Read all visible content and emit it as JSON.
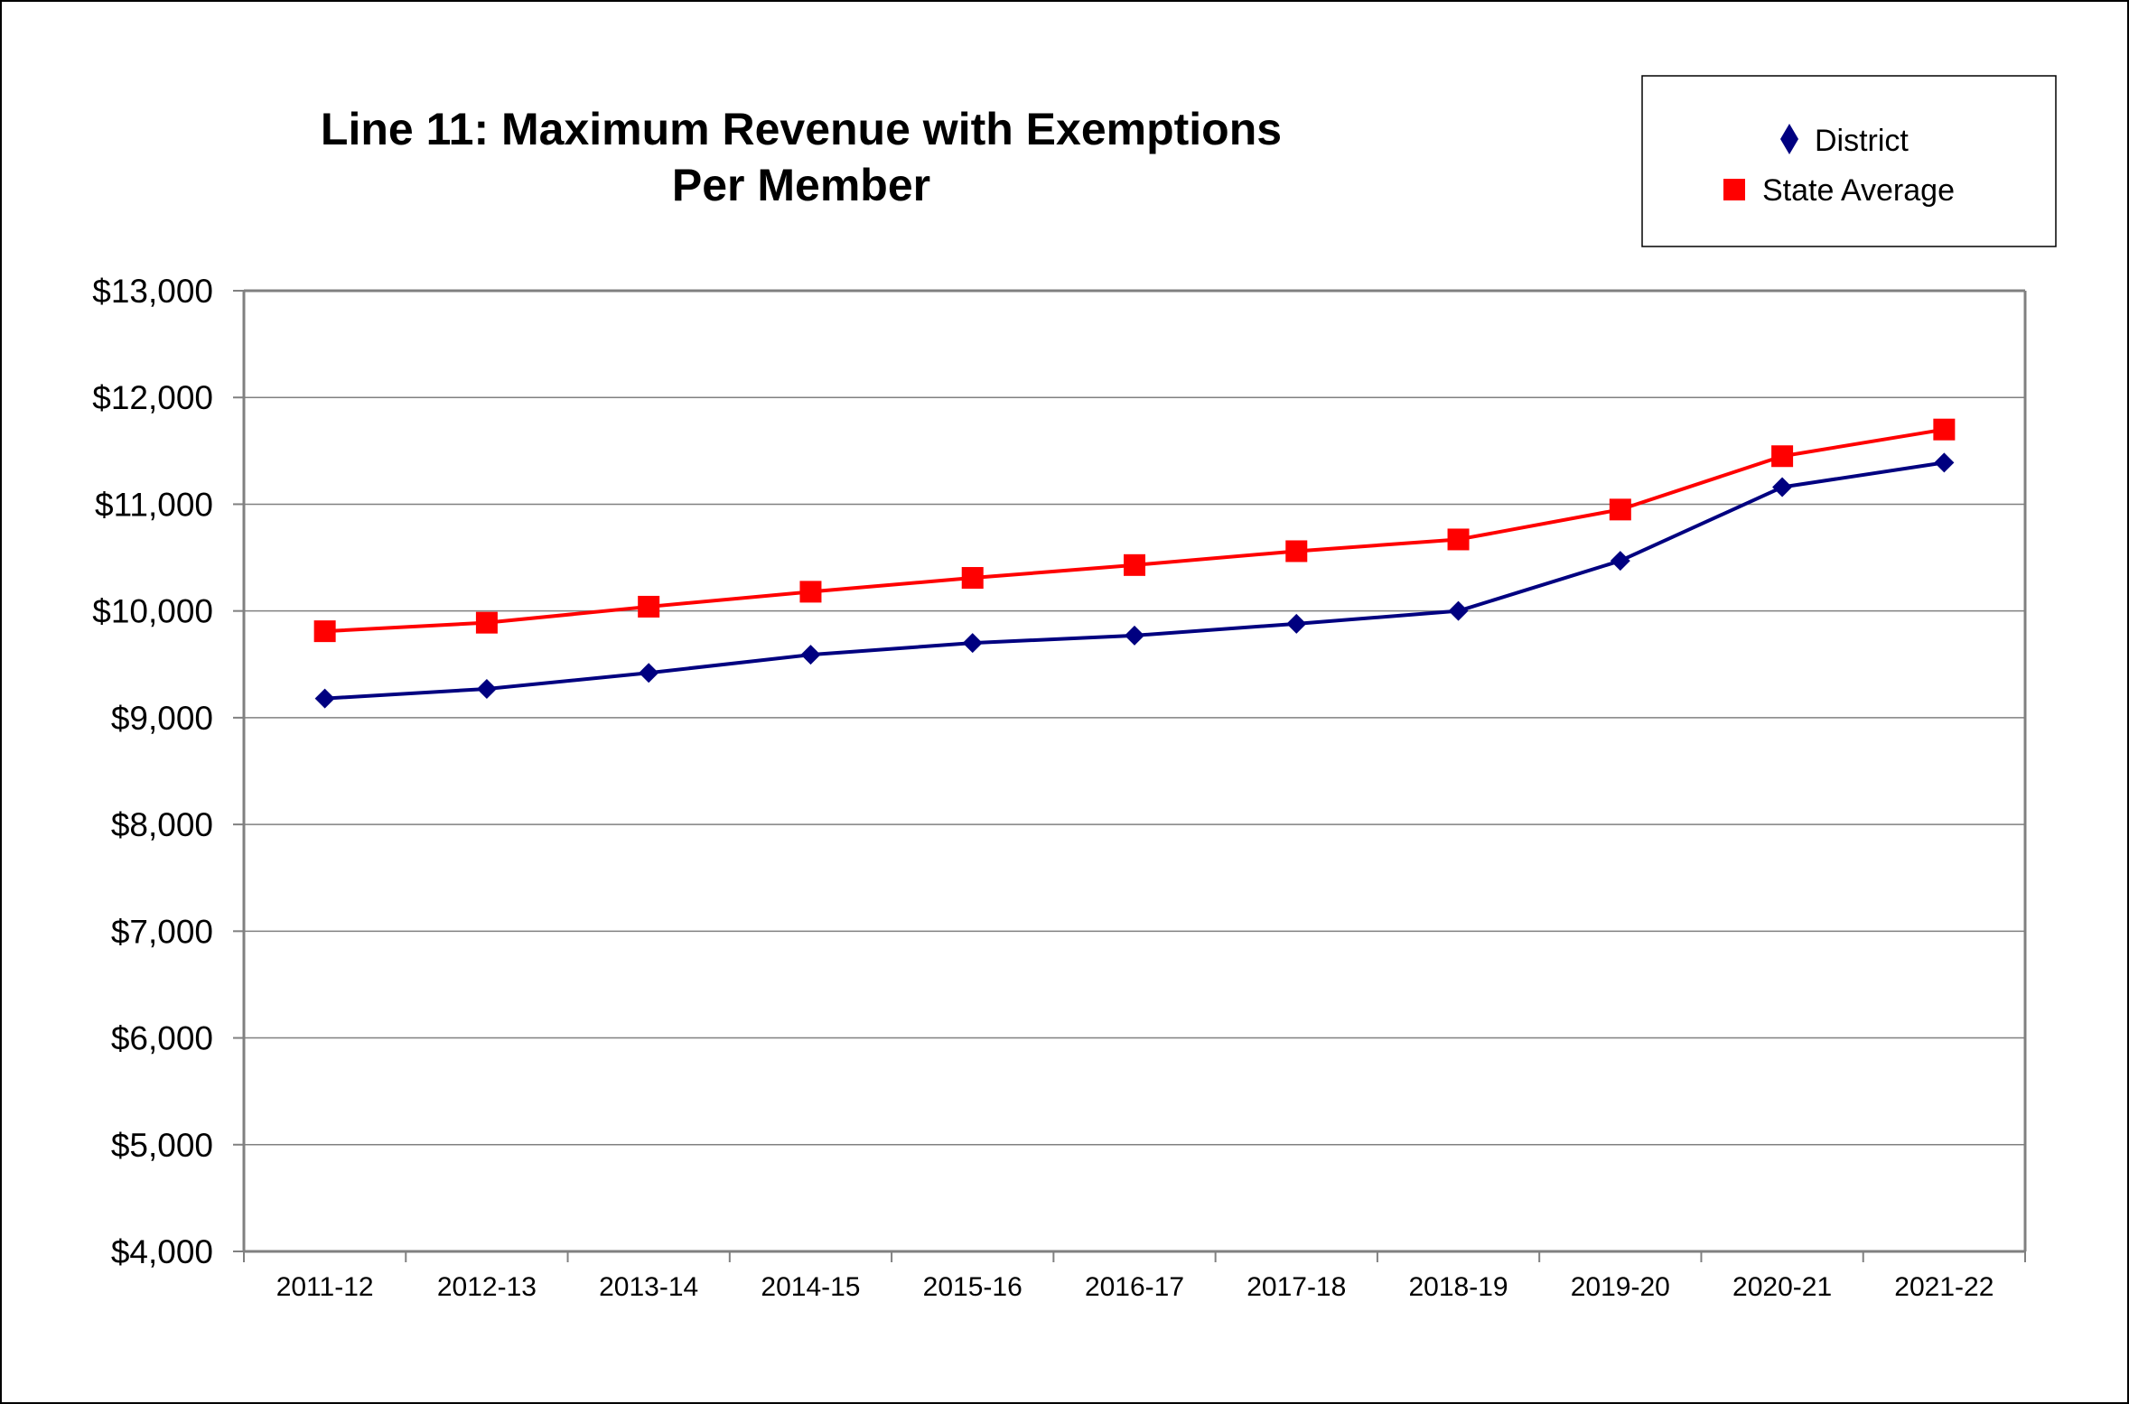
{
  "chart_data": {
    "type": "line",
    "title_lines": [
      "Line 11: Maximum Revenue with Exemptions",
      "Per Member"
    ],
    "xlabel": "",
    "ylabel": "",
    "categories": [
      "2011-12",
      "2012-13",
      "2013-14",
      "2014-15",
      "2015-16",
      "2016-17",
      "2017-18",
      "2018-19",
      "2019-20",
      "2020-21",
      "2021-22"
    ],
    "ylim": [
      4000,
      13000
    ],
    "yticks": [
      4000,
      5000,
      6000,
      7000,
      8000,
      9000,
      10000,
      11000,
      12000,
      13000
    ],
    "ytick_labels": [
      "$4,000",
      "$5,000",
      "$6,000",
      "$7,000",
      "$8,000",
      "$9,000",
      "$10,000",
      "$11,000",
      "$12,000",
      "$13,000"
    ],
    "grid": true,
    "legend_position": "top-right",
    "series": [
      {
        "name": "District",
        "color": "#000080",
        "marker": "diamond",
        "values": [
          9180,
          9270,
          9420,
          9590,
          9700,
          9770,
          9880,
          10000,
          10470,
          11160,
          11390
        ]
      },
      {
        "name": "State Average",
        "color": "#ff0000",
        "marker": "square",
        "values": [
          9810,
          9890,
          10040,
          10180,
          10310,
          10430,
          10560,
          10670,
          10950,
          11450,
          11700
        ]
      }
    ]
  }
}
